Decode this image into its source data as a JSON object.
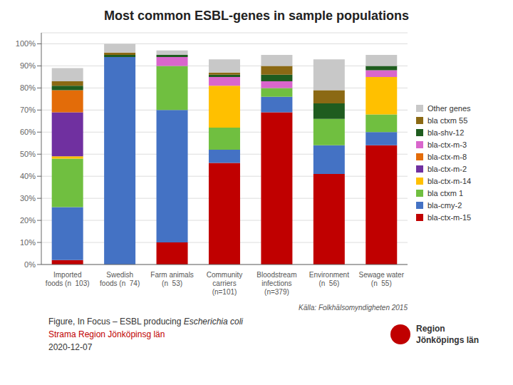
{
  "chart_data": {
    "type": "bar",
    "title": "Most common ESBL-genes in sample populations",
    "categories": [
      "Imported\nfoods (n  103)",
      "Swedish\nfoods (n  74)",
      "Farm animals\n(n  53)",
      "Community\ncarriers\n(n=101)",
      "Bloodstream\ninfections\n(n=379)",
      "Environment\n(n  56)",
      "Sewage water\n(n  55)"
    ],
    "series": [
      {
        "name": "bla-ctx-m-15",
        "color": "#c00000",
        "values": [
          2,
          0,
          10,
          46,
          69,
          41,
          54
        ]
      },
      {
        "name": "bla-cmy-2",
        "color": "#4472c4",
        "values": [
          24,
          94,
          60,
          6,
          7,
          13,
          6
        ]
      },
      {
        "name": "bla ctxm 1",
        "color": "#70bf40",
        "values": [
          22,
          0,
          20,
          10,
          4,
          12,
          8
        ]
      },
      {
        "name": "bla-ctx-m-14",
        "color": "#ffc000",
        "values": [
          1,
          0,
          0,
          19,
          0,
          0,
          17
        ]
      },
      {
        "name": "bla-ctx-m-2",
        "color": "#7030a0",
        "values": [
          20,
          0,
          0,
          0,
          0,
          0,
          0
        ]
      },
      {
        "name": "bla-ctx-m-8",
        "color": "#e36c09",
        "values": [
          10,
          0,
          0,
          0,
          0,
          0,
          0
        ]
      },
      {
        "name": "bla-ctx-m-3",
        "color": "#d966cc",
        "values": [
          0,
          0,
          4,
          4,
          3,
          0,
          3
        ]
      },
      {
        "name": "bla-shv-12",
        "color": "#1f5c1f",
        "values": [
          2,
          1,
          1,
          1,
          3,
          7,
          2
        ]
      },
      {
        "name": "bla ctxm 55",
        "color": "#8b6914",
        "values": [
          2,
          1,
          0,
          1,
          4,
          6,
          0
        ]
      },
      {
        "name": "Other genes",
        "color": "#c8c8c8",
        "values": [
          6,
          4,
          2,
          6,
          5,
          14,
          5
        ]
      }
    ],
    "ylim": [
      0,
      105
    ],
    "yticks": [
      {
        "value": 0,
        "label": "0%"
      },
      {
        "value": 10,
        "label": "10%"
      },
      {
        "value": 20,
        "label": "20%"
      },
      {
        "value": 30,
        "label": "30%"
      },
      {
        "value": 40,
        "label": "40%"
      },
      {
        "value": 50,
        "label": "50%"
      },
      {
        "value": 60,
        "label": "60%"
      },
      {
        "value": 70,
        "label": "70%"
      },
      {
        "value": 80,
        "label": "80%"
      },
      {
        "value": 90,
        "label": "90%"
      },
      {
        "value": 100,
        "label": "100%"
      }
    ],
    "grid": true,
    "stacked": true,
    "legend": "right",
    "annotations": [
      "Källa: Folkhälsomyndigheten 2015",
      "Figure, In Focus – ESBL producing ",
      "Escherichia coli",
      "Strama Region Jönköpinsg län",
      "2020-12-07",
      "Region",
      "Jönköpings län"
    ]
  }
}
